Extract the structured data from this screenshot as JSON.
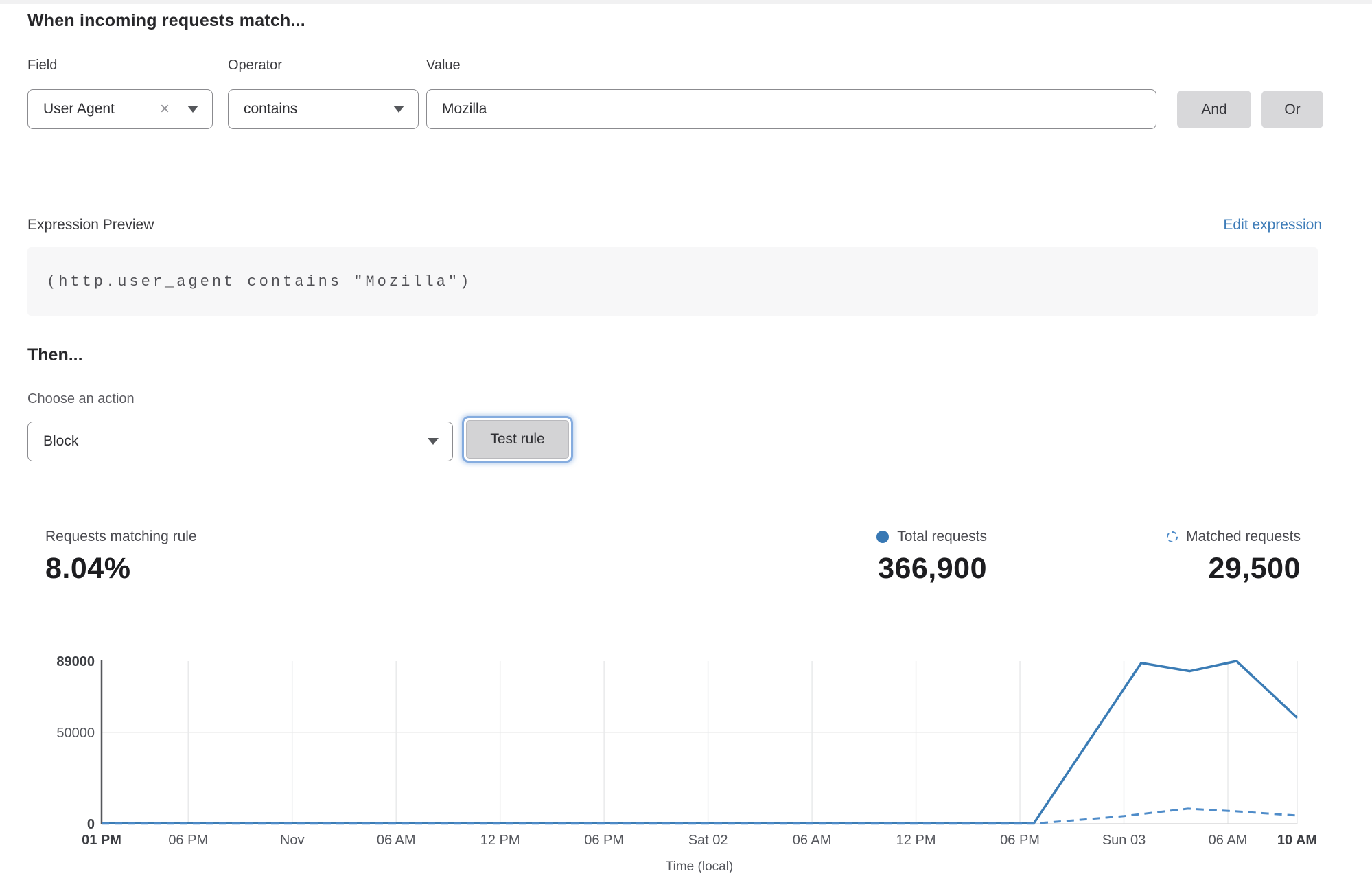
{
  "rule_builder": {
    "heading": "When incoming requests match...",
    "field": {
      "label": "Field",
      "value": "User Agent",
      "clear_icon": "×"
    },
    "operator": {
      "label": "Operator",
      "value": "contains"
    },
    "value": {
      "label": "Value",
      "value": "Mozilla"
    },
    "and_button": "And",
    "or_button": "Or"
  },
  "expression": {
    "preview_label": "Expression Preview",
    "edit_link": "Edit expression",
    "code": "(http.user_agent contains \"Mozilla\")"
  },
  "action": {
    "heading": "Then...",
    "choose_label": "Choose an action",
    "selected": "Block",
    "test_button": "Test rule"
  },
  "stats": {
    "matching": {
      "label": "Requests matching rule",
      "value": "8.04%"
    },
    "total": {
      "label": "Total requests",
      "value": "366,900"
    },
    "matched": {
      "label": "Matched requests",
      "value": "29,500"
    }
  },
  "colors": {
    "accent_blue": "#3b7cb5",
    "matched_blue": "#4f8cc9",
    "link_blue": "#3e7cb8",
    "focus_ring": "#85acdf",
    "grid_gray": "#e9eaeb"
  },
  "chart_data": {
    "type": "line",
    "title": "",
    "xlabel": "Time (local)",
    "ylabel": "",
    "ylim": [
      0,
      89000
    ],
    "x_total_hours": 69,
    "legend_position": "top-right-above-chart",
    "grid": "vertical-at-ticks-plus-50000",
    "y_ticks": [
      {
        "value": 89000,
        "label": "89000",
        "bold": true,
        "grid": false
      },
      {
        "value": 50000,
        "label": "50000",
        "bold": false,
        "grid": true
      },
      {
        "value": 0,
        "label": "0",
        "bold": true,
        "grid": false
      }
    ],
    "x_ticks": [
      {
        "hour": 0,
        "label": "01 PM",
        "bold": true
      },
      {
        "hour": 5,
        "label": "06 PM",
        "bold": false
      },
      {
        "hour": 11,
        "label": "Nov",
        "bold": false
      },
      {
        "hour": 17,
        "label": "06 AM",
        "bold": false
      },
      {
        "hour": 23,
        "label": "12 PM",
        "bold": false
      },
      {
        "hour": 29,
        "label": "06 PM",
        "bold": false
      },
      {
        "hour": 35,
        "label": "Sat 02",
        "bold": false
      },
      {
        "hour": 41,
        "label": "06 AM",
        "bold": false
      },
      {
        "hour": 47,
        "label": "12 PM",
        "bold": false
      },
      {
        "hour": 53,
        "label": "06 PM",
        "bold": false
      },
      {
        "hour": 59,
        "label": "Sun 03",
        "bold": false
      },
      {
        "hour": 65,
        "label": "06 AM",
        "bold": false
      },
      {
        "hour": 69,
        "label": "10 AM",
        "bold": true
      }
    ],
    "series": [
      {
        "name": "Total requests",
        "style": "solid",
        "color": "#3b7cb5",
        "points": [
          [
            0,
            250
          ],
          [
            5,
            250
          ],
          [
            11,
            250
          ],
          [
            17,
            250
          ],
          [
            23,
            250
          ],
          [
            29,
            250
          ],
          [
            35,
            250
          ],
          [
            41,
            250
          ],
          [
            47,
            250
          ],
          [
            53,
            250
          ],
          [
            53.8,
            250
          ],
          [
            60,
            88000
          ],
          [
            62.8,
            83500
          ],
          [
            65.5,
            89000
          ],
          [
            69,
            58000
          ]
        ]
      },
      {
        "name": "Matched requests",
        "style": "dashed",
        "color": "#4f8cc9",
        "points": [
          [
            0,
            120
          ],
          [
            5,
            120
          ],
          [
            11,
            120
          ],
          [
            17,
            120
          ],
          [
            23,
            120
          ],
          [
            29,
            120
          ],
          [
            35,
            120
          ],
          [
            41,
            120
          ],
          [
            47,
            120
          ],
          [
            53.8,
            120
          ],
          [
            56,
            1800
          ],
          [
            59,
            4200
          ],
          [
            62.7,
            8300
          ],
          [
            65.5,
            6800
          ],
          [
            69,
            4500
          ]
        ]
      }
    ]
  }
}
